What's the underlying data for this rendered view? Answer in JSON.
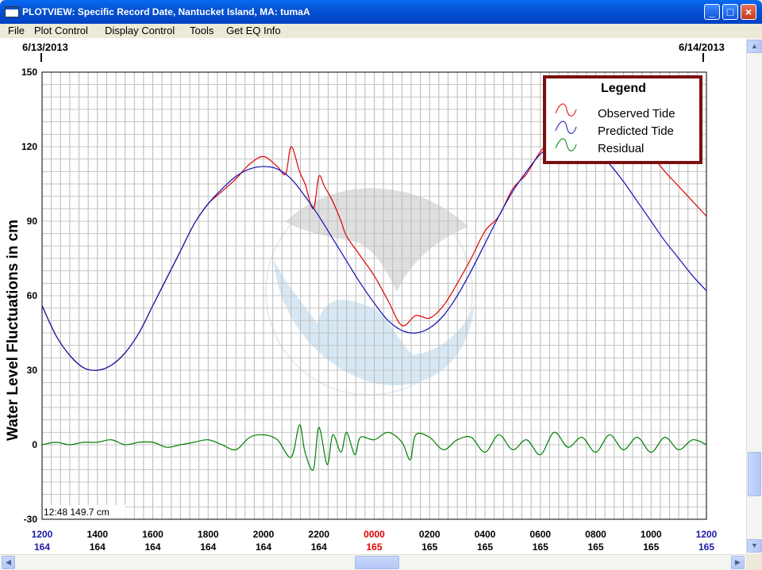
{
  "window": {
    "title": "PLOTVIEW: Specific Record Date, Nantucket Island, MA: tumaA",
    "buttons": {
      "minimize": "_",
      "maximize": "□",
      "close": "×"
    }
  },
  "menu": [
    "File",
    "Plot Control",
    "Display Control",
    "Tools",
    "Get EQ Info"
  ],
  "colors": {
    "observed": "#e00000",
    "predicted": "#1010b0",
    "residual": "#008000",
    "legend_border": "#7b1010",
    "day_change": "#e00000"
  },
  "chart_data": {
    "type": "line",
    "ylabel": "Water Level Fluctuations in cm",
    "ylim": [
      -30,
      150
    ],
    "yticks": [
      150,
      120,
      90,
      60,
      30,
      0,
      -30
    ],
    "date_start": "6/13/2013",
    "date_end": "6/14/2013",
    "cursor_readout": "12:48 149.7 cm",
    "x_range_hours": [
      12,
      36
    ],
    "x_ticks": [
      {
        "time": "1200",
        "day": "164",
        "color": "blue"
      },
      {
        "time": "1400",
        "day": "164",
        "color": "black"
      },
      {
        "time": "1600",
        "day": "164",
        "color": "black"
      },
      {
        "time": "1800",
        "day": "164",
        "color": "black"
      },
      {
        "time": "2000",
        "day": "164",
        "color": "black"
      },
      {
        "time": "2200",
        "day": "164",
        "color": "black"
      },
      {
        "time": "0000",
        "day": "165",
        "color": "red"
      },
      {
        "time": "0200",
        "day": "165",
        "color": "black"
      },
      {
        "time": "0400",
        "day": "165",
        "color": "black"
      },
      {
        "time": "0600",
        "day": "165",
        "color": "black"
      },
      {
        "time": "0800",
        "day": "165",
        "color": "black"
      },
      {
        "time": "1000",
        "day": "165",
        "color": "black"
      },
      {
        "time": "1200",
        "day": "165",
        "color": "blue"
      }
    ],
    "legend": {
      "title": "Legend",
      "entries": [
        "Observed Tide",
        "Predicted Tide",
        "Residual"
      ]
    },
    "series": [
      {
        "name": "Observed Tide",
        "x": [
          12,
          12.5,
          13,
          13.5,
          14,
          14.5,
          15,
          15.5,
          16,
          16.5,
          17,
          17.5,
          18,
          18.5,
          19,
          19.5,
          20,
          20.5,
          20.8,
          21,
          21.3,
          21.5,
          21.8,
          22,
          22.2,
          22.5,
          22.8,
          23,
          23.5,
          24,
          24.5,
          25,
          25.5,
          26,
          26.5,
          27,
          27.5,
          28,
          28.5,
          29,
          29.5,
          30,
          30.5,
          31,
          31.5,
          32,
          32.5,
          33,
          33.5,
          34,
          34.5,
          35,
          35.5,
          36
        ],
        "values": [
          56,
          44,
          36,
          31,
          30,
          32,
          37,
          45,
          56,
          67,
          78,
          89,
          97,
          102,
          107,
          113,
          116,
          112,
          109,
          120,
          110,
          105,
          95,
          108,
          104,
          98,
          90,
          84,
          76,
          68,
          58,
          48,
          52,
          51,
          56,
          65,
          75,
          86,
          92,
          103,
          109,
          118,
          124,
          131,
          135,
          137,
          134,
          130,
          124,
          117,
          110,
          104,
          98,
          92
        ]
      },
      {
        "name": "Predicted Tide",
        "x": [
          12,
          12.5,
          13,
          13.5,
          14,
          14.5,
          15,
          15.5,
          16,
          16.5,
          17,
          17.5,
          18,
          18.5,
          19,
          19.5,
          20,
          20.5,
          21,
          21.5,
          22,
          22.5,
          23,
          23.5,
          24,
          24.5,
          25,
          25.5,
          26,
          26.5,
          27,
          27.5,
          28,
          28.5,
          29,
          29.5,
          30,
          30.5,
          31,
          31.5,
          32,
          32.5,
          33,
          33.5,
          34,
          34.5,
          35,
          35.5,
          36
        ],
        "values": [
          56,
          44,
          36,
          31,
          30,
          32,
          37,
          45,
          56,
          67,
          78,
          89,
          97,
          103,
          108,
          111,
          112,
          111,
          107,
          100,
          92,
          83,
          74,
          65,
          57,
          50,
          46,
          45,
          47,
          52,
          60,
          70,
          81,
          92,
          102,
          110,
          117,
          121,
          123,
          122,
          119,
          113,
          106,
          98,
          90,
          82,
          75,
          68,
          62
        ]
      },
      {
        "name": "Residual",
        "x": [
          12,
          12.5,
          13,
          13.5,
          14,
          14.5,
          15,
          15.5,
          16,
          16.5,
          17,
          17.5,
          18,
          18.5,
          19,
          19.5,
          20,
          20.5,
          21,
          21.3,
          21.5,
          21.8,
          22,
          22.3,
          22.5,
          22.8,
          23,
          23.3,
          23.5,
          24,
          24.5,
          25,
          25.3,
          25.5,
          26,
          26.5,
          27,
          27.5,
          28,
          28.5,
          29,
          29.5,
          30,
          30.5,
          31,
          31.5,
          32,
          32.5,
          33,
          33.5,
          34,
          34.5,
          35,
          35.5,
          36
        ],
        "values": [
          0,
          1,
          0,
          1,
          1,
          2,
          0,
          1,
          1,
          -1,
          0,
          1,
          2,
          0,
          -2,
          3,
          4,
          2,
          -5,
          8,
          -3,
          -10,
          7,
          -8,
          4,
          -3,
          5,
          -4,
          3,
          2,
          5,
          1,
          -6,
          4,
          3,
          -2,
          2,
          3,
          -3,
          4,
          -2,
          2,
          -4,
          5,
          -1,
          3,
          -3,
          4,
          -2,
          3,
          -3,
          3,
          -2,
          2,
          0
        ]
      }
    ]
  }
}
